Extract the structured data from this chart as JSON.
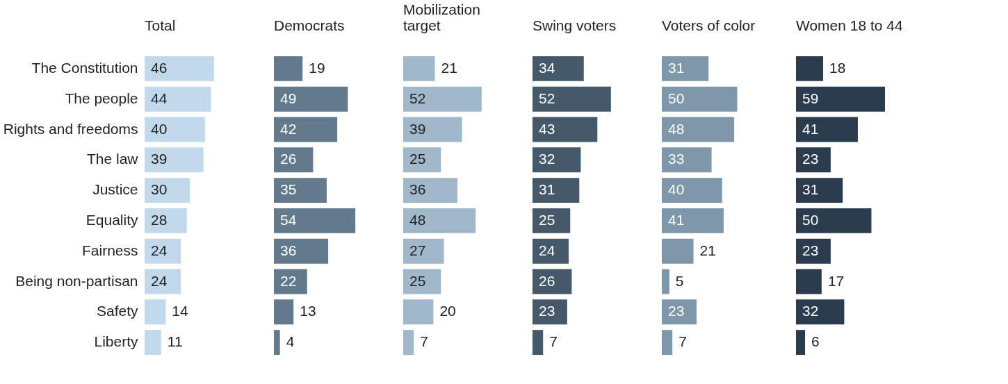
{
  "chart_data": [
    {
      "type": "bar",
      "orientation": "horizontal",
      "title": "Total",
      "categories": [
        "The Constitution",
        "The people",
        "Rights and freedoms",
        "The law",
        "Justice",
        "Equality",
        "Fairness",
        "Being non-partisan",
        "Safety",
        "Liberty"
      ],
      "values": [
        46,
        44,
        40,
        39,
        30,
        28,
        24,
        24,
        14,
        11
      ],
      "color": "#c2d9ec",
      "data_labels": true,
      "tick_labels": "y"
    },
    {
      "type": "bar",
      "orientation": "horizontal",
      "title": "Democrats",
      "values": [
        19,
        49,
        42,
        26,
        35,
        54,
        36,
        22,
        13,
        4
      ],
      "color": "#627a8b",
      "data_labels": true,
      "tick_labels": false
    },
    {
      "type": "bar",
      "orientation": "horizontal",
      "title": "Mobilization target",
      "values": [
        21,
        52,
        39,
        25,
        36,
        48,
        27,
        25,
        20,
        7
      ],
      "color": "#a1b8cb",
      "data_labels": true,
      "tick_labels": false
    },
    {
      "type": "bar",
      "orientation": "horizontal",
      "title": "Swing voters",
      "values": [
        34,
        52,
        43,
        32,
        31,
        25,
        24,
        26,
        23,
        7
      ],
      "color": "#45596b",
      "data_labels": true,
      "tick_labels": false
    },
    {
      "type": "bar",
      "orientation": "horizontal",
      "title": "Voters of color",
      "values": [
        31,
        50,
        48,
        33,
        40,
        41,
        21,
        5,
        23,
        7
      ],
      "color": "#7f97aa",
      "data_labels": true,
      "tick_labels": false
    },
    {
      "type": "bar",
      "orientation": "horizontal",
      "title": "Women 18 to 44",
      "values": [
        18,
        59,
        41,
        23,
        31,
        50,
        23,
        17,
        32,
        6
      ],
      "color": "#2a3c4e",
      "data_labels": true,
      "tick_labels": false
    }
  ]
}
